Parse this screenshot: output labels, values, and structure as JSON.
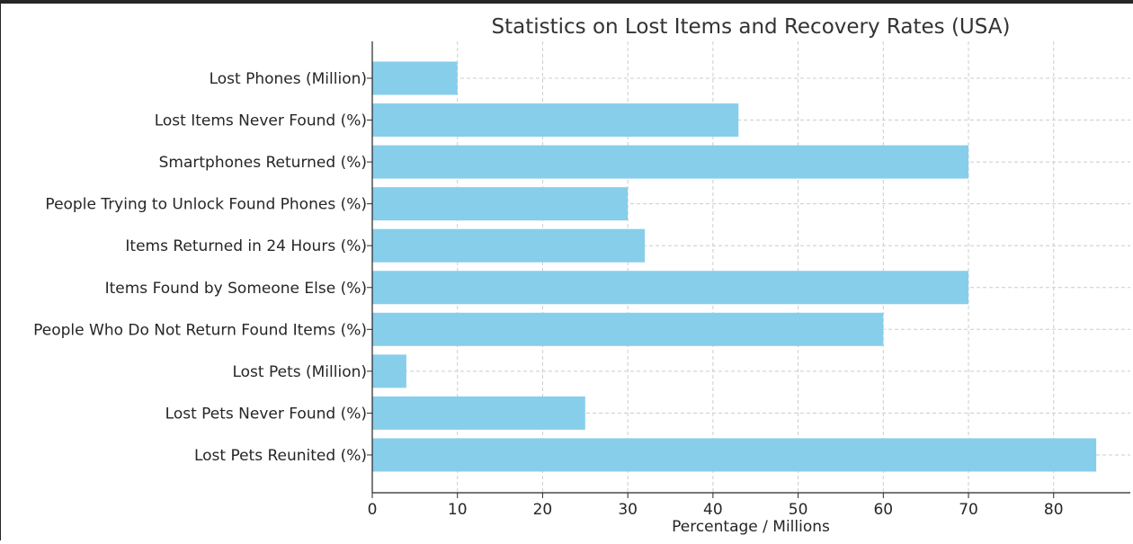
{
  "chart_data": {
    "type": "bar",
    "orientation": "horizontal",
    "title": "Statistics on Lost Items and Recovery Rates (USA)",
    "xlabel": "Percentage / Millions",
    "ylabel": "",
    "xlim": [
      0,
      89
    ],
    "xticks": [
      0,
      10,
      20,
      30,
      40,
      50,
      60,
      70,
      80
    ],
    "grid": true,
    "bar_color": "#87CEEB",
    "categories": [
      "Lost Phones (Million)",
      "Lost Items Never Found (%)",
      "Smartphones Returned (%)",
      "People Trying to Unlock Found Phones (%)",
      "Items Returned in 24 Hours (%)",
      "Items Found by Someone Else (%)",
      "People Who Do Not Return Found Items (%)",
      "Lost Pets (Million)",
      "Lost Pets Never Found (%)",
      "Lost Pets Reunited (%)"
    ],
    "values": [
      10,
      43,
      70,
      30,
      32,
      70,
      60,
      4,
      25,
      85
    ]
  }
}
